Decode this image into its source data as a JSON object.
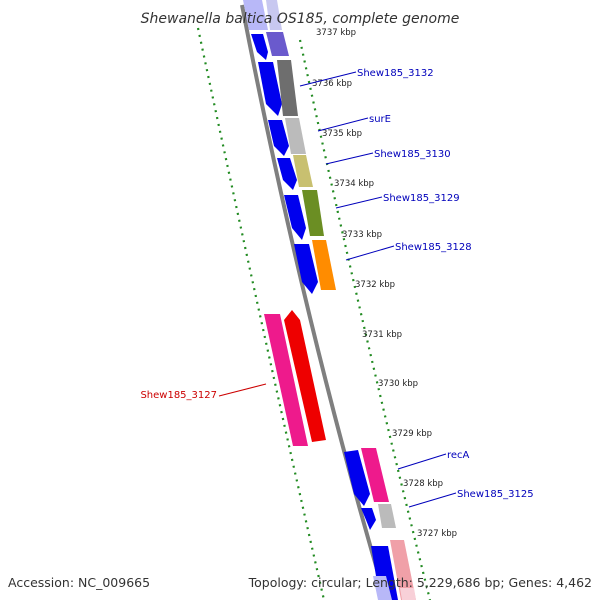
{
  "title": "Shewanella baltica OS185, complete genome",
  "footer": {
    "accession": "Accession: NC_009665",
    "topology": "Topology: circular; Length: 5,229,686 bp; Genes: 4,462"
  },
  "scale": {
    "ticks": [
      {
        "label": "3737 kbp",
        "kbp": 3737
      },
      {
        "label": "3736 kbp",
        "kbp": 3736
      },
      {
        "label": "3735 kbp",
        "kbp": 3735
      },
      {
        "label": "3734 kbp",
        "kbp": 3734
      },
      {
        "label": "3733 kbp",
        "kbp": 3733
      },
      {
        "label": "3732 kbp",
        "kbp": 3732
      },
      {
        "label": "3731 kbp",
        "kbp": 3731
      },
      {
        "label": "3730 kbp",
        "kbp": 3730
      },
      {
        "label": "3729 kbp",
        "kbp": 3729
      },
      {
        "label": "3728 kbp",
        "kbp": 3728
      },
      {
        "label": "3727 kbp",
        "kbp": 3727
      }
    ]
  },
  "gene_labels": [
    {
      "text": "Shew185_3132",
      "color": "#0000bb"
    },
    {
      "text": "surE",
      "color": "#0000bb"
    },
    {
      "text": "Shew185_3130",
      "color": "#0000bb"
    },
    {
      "text": "Shew185_3129",
      "color": "#0000bb"
    },
    {
      "text": "Shew185_3128",
      "color": "#0000bb"
    },
    {
      "text": "Shew185_3127",
      "color": "#cc0000"
    },
    {
      "text": "recA",
      "color": "#0000bb"
    },
    {
      "text": "Shew185_3125",
      "color": "#0000bb"
    }
  ],
  "colors": {
    "backbone": "#7f7f7f",
    "tick_green": "#228b22",
    "cds_blue": "#0000ee",
    "shew3132": "#6e6e6e",
    "sure": "#bbbbbb",
    "shew3130": "#c8c070",
    "shew3129": "#6b8e23",
    "shew3128": "#ff8c00",
    "shew3127_pink": "#ee1a8c",
    "shew3127_red": "#ee0000",
    "reca": "#ee1a8c",
    "shew3125": "#bbbbbb"
  }
}
